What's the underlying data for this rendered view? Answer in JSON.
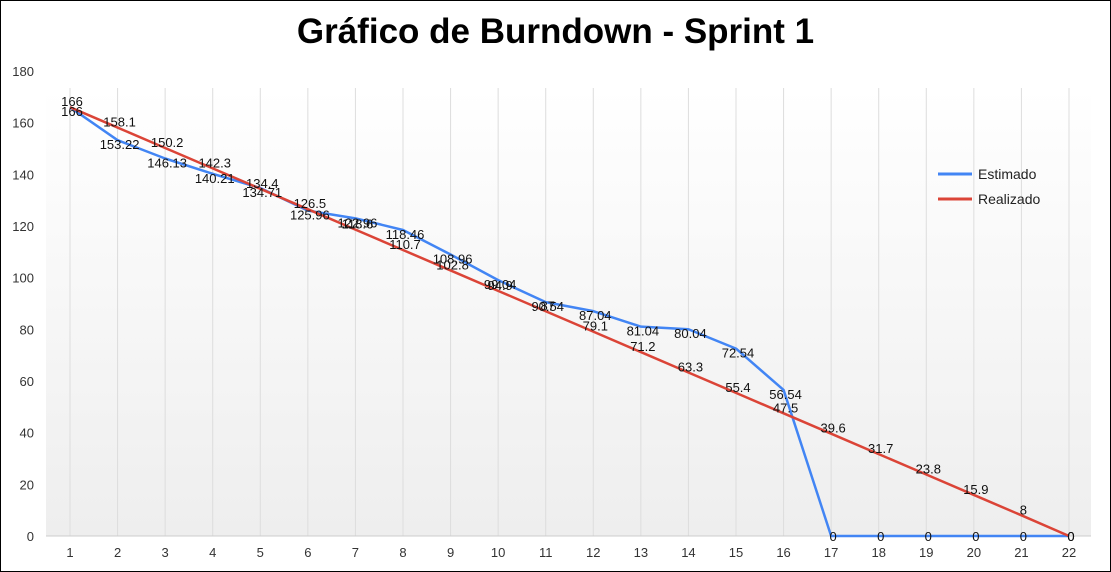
{
  "chart_data": {
    "type": "line",
    "title": "Gráfico de Burndown - Sprint 1",
    "xlabel": "",
    "ylabel": "",
    "x": [
      1,
      2,
      3,
      4,
      5,
      6,
      7,
      8,
      9,
      10,
      11,
      12,
      13,
      14,
      15,
      16,
      17,
      18,
      19,
      20,
      21,
      22
    ],
    "ylim": [
      0,
      180
    ],
    "yticks": [
      0,
      20,
      40,
      60,
      80,
      100,
      120,
      140,
      160,
      180
    ],
    "grid": "vertical",
    "legend": "right",
    "series": [
      {
        "name": "Estimado",
        "color": "#4285f4",
        "values": [
          166,
          153.22,
          146.13,
          140.21,
          134.71,
          125.96,
          122.96,
          118.46,
          108.96,
          99.04,
          90.54,
          87.04,
          81.04,
          80.04,
          72.54,
          56.54,
          0,
          0,
          0,
          0,
          0,
          0
        ],
        "labels": [
          "166",
          "153.22",
          "146.13",
          "140.21",
          "134.71",
          "125.96",
          "122.96",
          "118.46",
          "108.96",
          "99.04",
          "90.54",
          "87.04",
          "81.04",
          "80.04",
          "72.54",
          "56.54",
          "0",
          "0",
          "0",
          "0",
          "0",
          "0"
        ]
      },
      {
        "name": "Realizado",
        "color": "#db4437",
        "values": [
          166,
          158.1,
          150.2,
          142.3,
          134.4,
          126.5,
          118.6,
          110.7,
          102.8,
          94.9,
          87,
          79.1,
          71.2,
          63.3,
          55.4,
          47.5,
          39.6,
          31.7,
          23.8,
          15.9,
          8,
          0
        ],
        "labels": [
          "166",
          "158.1",
          "150.2",
          "142.3",
          "134.4",
          "126.5",
          "118.6",
          "110.7",
          "102.8",
          "94.9",
          "87",
          "79.1",
          "71.2",
          "63.3",
          "55.4",
          "47.5",
          "39.6",
          "31.7",
          "23.8",
          "15.9",
          "8",
          "0"
        ]
      }
    ]
  }
}
